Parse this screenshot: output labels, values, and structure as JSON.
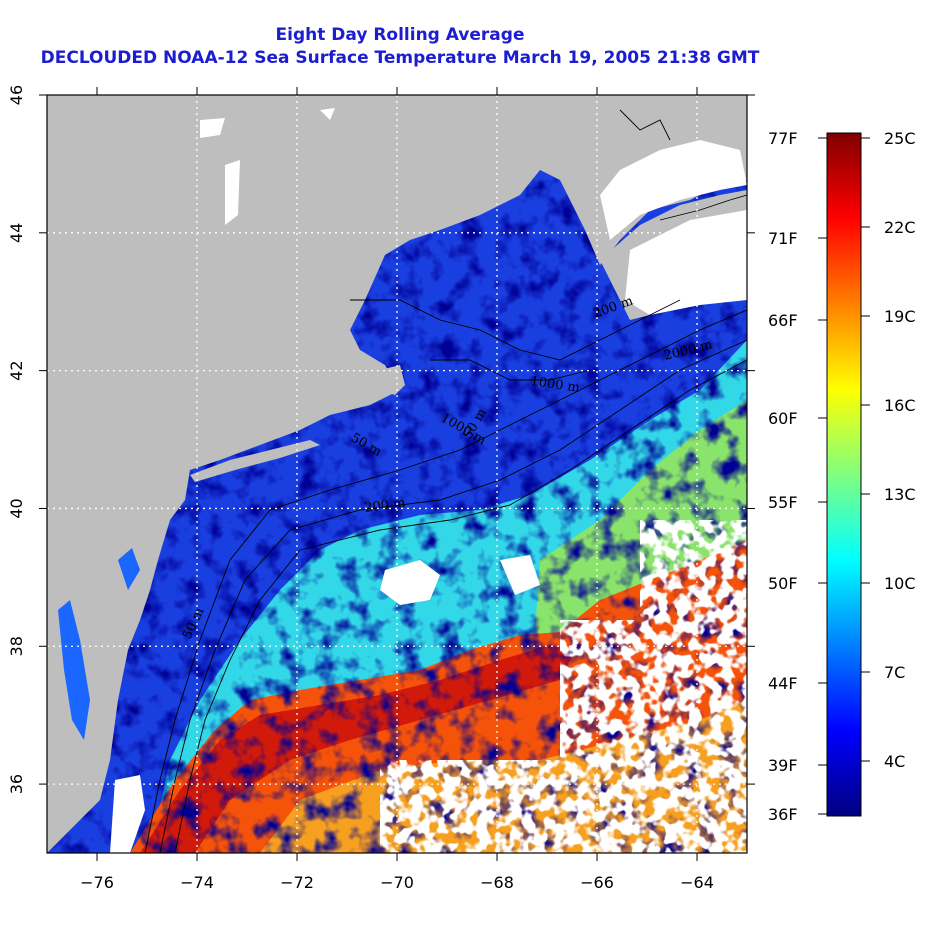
{
  "title": "Eight Day Rolling Average",
  "subtitle": "DECLOUDED NOAA-12 Sea Surface Temperature March 19, 2005 21:38 GMT",
  "map": {
    "lon_range": [
      -77,
      -63
    ],
    "lat_range": [
      35,
      46
    ],
    "x_ticks": [
      "-76",
      "-74",
      "-72",
      "-70",
      "-68",
      "-66",
      "-64"
    ],
    "y_ticks": [
      "36",
      "38",
      "40",
      "42",
      "44",
      "46"
    ],
    "grid_lons": [
      -74,
      -72,
      -70,
      -68,
      -66,
      -64
    ],
    "grid_lats": [
      36,
      38,
      40,
      42,
      44
    ],
    "contour_labels": [
      "50 m",
      "200 m",
      "1000 m",
      "2000 m",
      "200 m",
      "50 m",
      "50 m",
      "1000 m"
    ],
    "colors": {
      "land": "#bebebe",
      "cloud": "#ffffff",
      "grid": "#ffffff",
      "contour": "#000000"
    }
  },
  "colorbar": {
    "celsius_labels": [
      "25C",
      "22C",
      "19C",
      "16C",
      "13C",
      "10C",
      "7C",
      "4C"
    ],
    "fahrenheit_labels": [
      "77F",
      "71F",
      "66F",
      "60F",
      "55F",
      "50F",
      "44F",
      "39F",
      "36F"
    ],
    "gradient": [
      "#000080",
      "#0000ff",
      "#0080ff",
      "#00ffff",
      "#80ff80",
      "#ffff00",
      "#ff8000",
      "#ff0000",
      "#800000"
    ]
  }
}
